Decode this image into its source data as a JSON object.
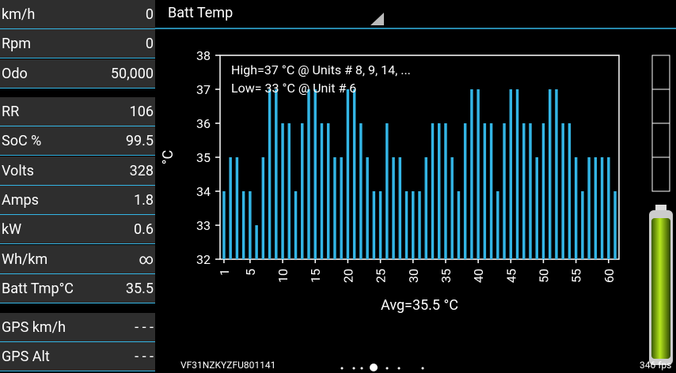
{
  "panel": {
    "groups": [
      [
        {
          "label": "km/h",
          "value": 0
        },
        {
          "label": "Rpm",
          "value": 0
        },
        {
          "label": "Odo",
          "value": "50,000"
        }
      ],
      [
        {
          "label": "RR",
          "value": 106
        },
        {
          "label": "SoC %",
          "value": 99.5
        },
        {
          "label": "Volts",
          "value": 328
        },
        {
          "label": "Amps",
          "value": 1.8
        },
        {
          "label": "kW",
          "value": 0.6
        },
        {
          "label": "Wh/km",
          "value": "∞"
        },
        {
          "label": "Batt Tmp°C",
          "value": 35.5
        }
      ],
      [
        {
          "label": "GPS km/h",
          "value": "- - -"
        },
        {
          "label": "GPS Alt",
          "value": "- - -"
        }
      ]
    ]
  },
  "header": {
    "title": "Batt Temp"
  },
  "footer": {
    "vin": "VF31NZKYZFU801141",
    "fps": "346 fps"
  },
  "chart_data": {
    "type": "bar",
    "annotations": [
      "High=37 °C @ Units # 8, 9, 14,  ...",
      "Low= 33 °C @ Unit # 6"
    ],
    "x_label": "Avg=35.5 °C",
    "y_label": "°C",
    "x": [
      1,
      2,
      3,
      4,
      5,
      6,
      7,
      8,
      9,
      10,
      11,
      12,
      13,
      14,
      15,
      16,
      17,
      18,
      19,
      20,
      21,
      22,
      23,
      24,
      25,
      26,
      27,
      28,
      29,
      30,
      31,
      32,
      33,
      34,
      35,
      36,
      37,
      38,
      39,
      40,
      41,
      42,
      43,
      44,
      45,
      46,
      47,
      48,
      49,
      50,
      51,
      52,
      53,
      54,
      55,
      56,
      57,
      58,
      59,
      60,
      61
    ],
    "values": [
      34,
      35,
      35,
      34,
      34,
      33,
      35,
      37,
      37,
      36,
      36,
      34,
      36,
      37,
      37,
      36,
      36,
      35,
      35,
      37,
      37,
      36,
      35,
      34,
      34,
      36,
      35,
      35,
      34,
      34,
      34,
      35,
      36,
      36,
      36,
      35,
      34,
      36,
      37,
      37,
      36,
      36,
      34,
      36,
      37,
      37,
      36,
      36,
      35,
      36,
      37,
      37,
      36,
      36,
      35,
      34,
      35,
      35,
      35,
      35,
      34
    ],
    "color": "#33b5e5",
    "xlim": [
      0.4,
      61.6
    ],
    "xticks": [
      1,
      5,
      10,
      15,
      20,
      25,
      30,
      35,
      40,
      45,
      50,
      55,
      60
    ],
    "ylim": [
      32,
      38
    ],
    "yticks": [
      32,
      33,
      34,
      35,
      36,
      37,
      38
    ]
  }
}
